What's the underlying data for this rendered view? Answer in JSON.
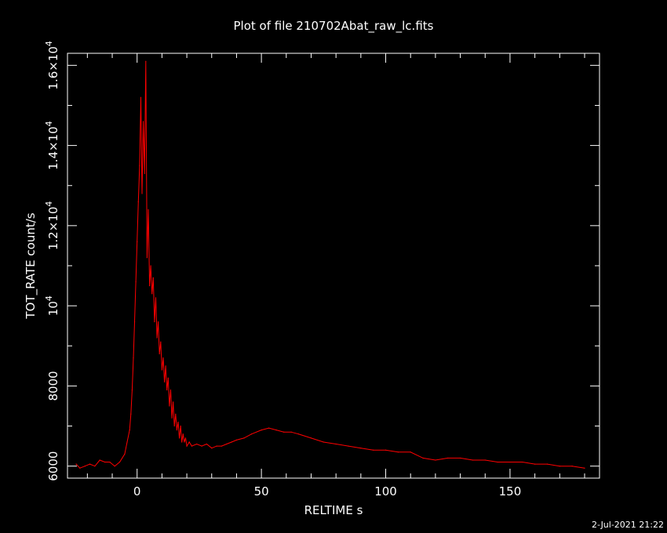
{
  "chart_data": {
    "type": "line",
    "title": "Plot of file 210702Abat_raw_lc.fits",
    "xlabel": "RELTIME  s",
    "ylabel": "TOT_RATE  count/s",
    "footer": "2-Jul-2021 21:22",
    "xlim": [
      -28,
      186
    ],
    "ylim": [
      5700,
      16300
    ],
    "x_ticks": [
      {
        "value": 0,
        "label": "0"
      },
      {
        "value": 50,
        "label": "50"
      },
      {
        "value": 100,
        "label": "100"
      },
      {
        "value": 150,
        "label": "150"
      }
    ],
    "y_ticks": [
      {
        "value": 6000,
        "mantissa": "6000",
        "exp": ""
      },
      {
        "value": 8000,
        "mantissa": "8000",
        "exp": ""
      },
      {
        "value": 10000,
        "mantissa": "10",
        "exp": "4"
      },
      {
        "value": 12000,
        "mantissa": "1.2×10",
        "exp": "4"
      },
      {
        "value": 14000,
        "mantissa": "1.4×10",
        "exp": "4"
      },
      {
        "value": 16000,
        "mantissa": "1.6×10",
        "exp": "4"
      }
    ],
    "grid": false,
    "series_color": "#ff0000",
    "axis_color": "#ffffff",
    "series": [
      {
        "x": [
          -24.5,
          -23,
          -21,
          -19,
          -17,
          -15,
          -13,
          -11,
          -9,
          -7,
          -5,
          -4,
          -3,
          -2.5,
          -2,
          -1.5,
          -1,
          -0.5,
          0,
          0.5,
          1,
          1.5,
          2,
          2.5,
          3,
          3.5,
          4,
          4.5,
          5,
          5.5,
          6,
          6.5,
          7,
          7.5,
          8,
          8.5,
          9,
          9.5,
          10,
          10.5,
          11,
          11.5,
          12,
          12.5,
          13,
          13.5,
          14,
          14.5,
          15,
          15.5,
          16,
          16.5,
          17,
          17.5,
          18,
          18.5,
          19,
          19.5,
          20,
          21,
          22,
          24,
          26,
          28,
          30,
          32,
          34,
          36,
          38,
          40,
          43,
          46,
          50,
          53,
          56,
          59,
          62,
          65,
          70,
          75,
          80,
          85,
          90,
          95,
          100,
          105,
          110,
          115,
          120,
          125,
          130,
          135,
          140,
          145,
          150,
          155,
          160,
          165,
          170,
          175,
          180
        ],
        "y": [
          6050,
          5950,
          6000,
          6050,
          6000,
          6150,
          6100,
          6100,
          6000,
          6100,
          6300,
          6600,
          6900,
          7300,
          7900,
          8700,
          9600,
          10600,
          11600,
          12600,
          13500,
          15200,
          12800,
          14600,
          13300,
          16100,
          11200,
          12400,
          10500,
          11000,
          10300,
          10700,
          9600,
          10200,
          9200,
          9600,
          8800,
          9100,
          8400,
          8700,
          8100,
          8500,
          7900,
          8200,
          7500,
          7900,
          7200,
          7600,
          7000,
          7300,
          6900,
          7100,
          6700,
          7000,
          6600,
          6800,
          6600,
          6700,
          6500,
          6600,
          6500,
          6550,
          6500,
          6550,
          6450,
          6500,
          6500,
          6550,
          6600,
          6650,
          6700,
          6800,
          6900,
          6950,
          6900,
          6850,
          6850,
          6800,
          6700,
          6600,
          6550,
          6500,
          6450,
          6400,
          6400,
          6350,
          6350,
          6200,
          6150,
          6200,
          6200,
          6150,
          6150,
          6100,
          6100,
          6100,
          6050,
          6050,
          6000,
          6000,
          5950
        ]
      }
    ]
  }
}
